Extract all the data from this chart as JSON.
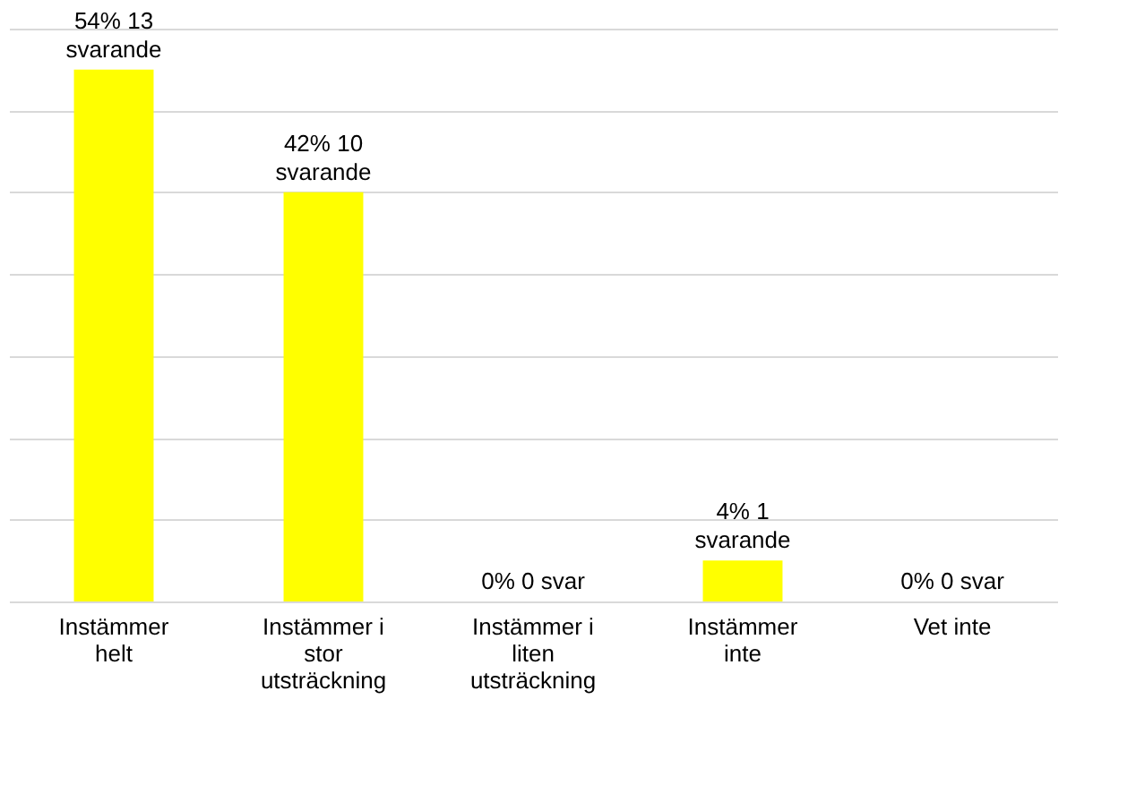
{
  "chart_data": {
    "type": "bar",
    "categories": [
      "Instämmer helt",
      "Instämmer i stor utsträckning",
      "Instämmer i liten utsträckning",
      "Instämmer inte",
      "Vet inte"
    ],
    "values": [
      13,
      10,
      0,
      1,
      0
    ],
    "value_labels": [
      "54% 13 svarande",
      "42% 10 svarande",
      "0% 0 svar",
      "4% 1 svarande",
      "0% 0 svar"
    ],
    "color": "#ffff00",
    "grid": "y",
    "tick_labels": "x"
  }
}
